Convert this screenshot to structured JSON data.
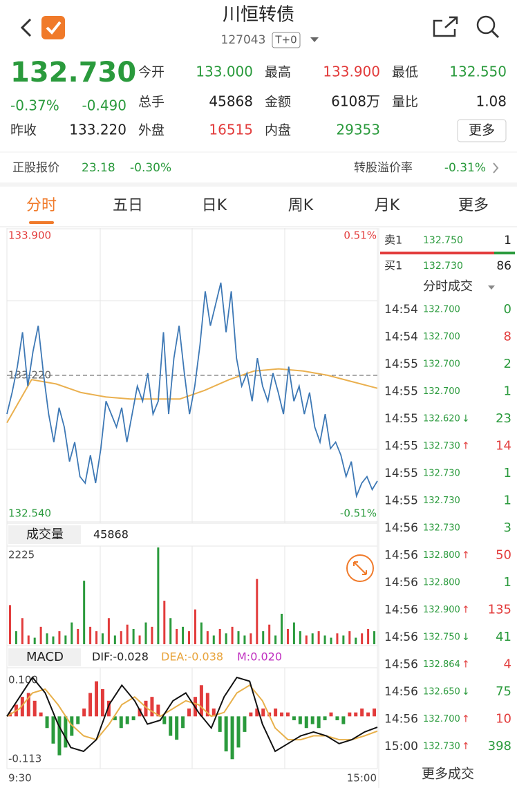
{
  "header": {
    "title": "川恒转债",
    "code": "127043",
    "badge": "T+0"
  },
  "quote": {
    "price": "132.730",
    "change_pct": "-0.37%",
    "change": "-0.490",
    "prev_label": "昨收",
    "prev_value": "133.220",
    "fields": [
      {
        "label": "今开",
        "value": "133.000",
        "color": "#2a9a3c"
      },
      {
        "label": "最高",
        "value": "133.900",
        "color": "#e23b3b"
      },
      {
        "label": "最低",
        "value": "132.550",
        "color": "#2a9a3c"
      },
      {
        "label": "总手",
        "value": "45868",
        "color": "#222222"
      },
      {
        "label": "金额",
        "value": "6108万",
        "color": "#222222"
      },
      {
        "label": "量比",
        "value": "1.08",
        "color": "#222222"
      },
      {
        "label": "外盘",
        "value": "16515",
        "color": "#e23b3b"
      },
      {
        "label": "内盘",
        "value": "29353",
        "color": "#2a9a3c"
      }
    ],
    "more_button": "更多"
  },
  "stock": {
    "label": "正股报价",
    "price": "23.18",
    "change": "-0.30%",
    "premium_label": "转股溢价率",
    "premium": "-0.31%"
  },
  "tabs": {
    "items": [
      "分时",
      "五日",
      "日K",
      "周K",
      "月K",
      "更多"
    ],
    "active": 0
  },
  "price_chart": {
    "ylim": [
      132.54,
      133.9
    ],
    "yticks": [
      {
        "value": 133.9,
        "label": "133.900"
      },
      {
        "value": 133.22,
        "label": "133.220"
      },
      {
        "value": 132.54,
        "label": "132.540"
      }
    ],
    "pct_ticks": [
      {
        "value": 133.9,
        "label": "0.51%"
      },
      {
        "value": 132.54,
        "label": "-0.51%"
      }
    ],
    "price": [
      133.04,
      133.14,
      133.26,
      133.42,
      133.17,
      133.33,
      133.45,
      133.23,
      133.04,
      132.91,
      133.07,
      132.98,
      132.82,
      132.91,
      132.75,
      132.72,
      132.85,
      132.72,
      132.88,
      133.1,
      133.04,
      132.98,
      133.07,
      132.91,
      133.04,
      133.17,
      133.1,
      133.23,
      133.04,
      133.1,
      133.42,
      133.04,
      133.3,
      133.45,
      133.23,
      133.04,
      133.17,
      133.36,
      133.61,
      133.45,
      133.55,
      133.65,
      133.42,
      133.61,
      133.3,
      133.17,
      133.23,
      133.1,
      133.3,
      133.17,
      133.1,
      133.23,
      133.14,
      133.04,
      133.26,
      133.1,
      133.17,
      133.04,
      133.14,
      132.98,
      132.91,
      133.04,
      132.88,
      132.91,
      132.85,
      132.75,
      132.82,
      132.66,
      132.72,
      132.75,
      132.69,
      132.73
    ],
    "price_color": "#3d78b5",
    "average": [
      133.0,
      133.2,
      133.18,
      133.14,
      133.12,
      133.11,
      133.11,
      133.11,
      133.15,
      133.2,
      133.24,
      133.25,
      133.24,
      133.22,
      133.19,
      133.16
    ],
    "average_color": "#eab04f",
    "xticks": [
      "9:30",
      "15:00"
    ]
  },
  "volume_chart": {
    "button": "成交量",
    "total": "45868",
    "ylim": [
      0,
      2225
    ],
    "yticks": [
      2225
    ],
    "values": [
      900,
      300,
      600,
      200,
      150,
      400,
      250,
      180,
      300,
      200,
      500,
      350,
      1460,
      400,
      300,
      250,
      600,
      200,
      300,
      450,
      350,
      200,
      500,
      400,
      2225,
      1000,
      600,
      350,
      400,
      300,
      800,
      500,
      300,
      200,
      350,
      250,
      400,
      300,
      200,
      250,
      1500,
      300,
      450,
      200,
      700,
      350,
      500,
      300,
      200,
      250,
      300,
      200,
      150,
      250,
      200,
      300,
      150,
      250,
      350,
      300
    ],
    "colors": [
      "#e23b3b",
      "#2a9a3c",
      "#e23b3b",
      "#e23b3b",
      "#2a9a3c",
      "#e23b3b",
      "#2a9a3c",
      "#2a9a3c",
      "#e23b3b",
      "#2a9a3c",
      "#2a9a3c",
      "#e23b3b",
      "#2a9a3c",
      "#e23b3b",
      "#e23b3b",
      "#2a9a3c",
      "#e23b3b",
      "#2a9a3c",
      "#e23b3b",
      "#e23b3b",
      "#2a9a3c",
      "#e23b3b",
      "#2a9a3c",
      "#e23b3b",
      "#2a9a3c",
      "#e23b3b",
      "#2a9a3c",
      "#e23b3b",
      "#2a9a3c",
      "#e23b3b",
      "#e23b3b",
      "#2a9a3c",
      "#e23b3b",
      "#2a9a3c",
      "#e23b3b",
      "#2a9a3c",
      "#e23b3b",
      "#2a9a3c",
      "#2a9a3c",
      "#e23b3b",
      "#e23b3b",
      "#2a9a3c",
      "#e23b3b",
      "#2a9a3c",
      "#2a9a3c",
      "#e23b3b",
      "#2a9a3c",
      "#2a9a3c",
      "#e23b3b",
      "#2a9a3c",
      "#e23b3b",
      "#2a9a3c",
      "#2a9a3c",
      "#e23b3b",
      "#2a9a3c",
      "#e23b3b",
      "#2a9a3c",
      "#e23b3b",
      "#e23b3b",
      "#2a9a3c"
    ]
  },
  "macd_chart": {
    "button": "MACD",
    "labels": [
      {
        "text": "DIF:-0.028",
        "color": "#222222"
      },
      {
        "text": "DEA:-0.038",
        "color": "#e8a33a"
      },
      {
        "text": "M:0.020",
        "color": "#c030c0"
      }
    ],
    "ylim": [
      -0.113,
      0.1
    ],
    "yticks": [
      {
        "value": 0.1,
        "label": "0.100"
      },
      -0.113
    ],
    "bars": [
      0.01,
      0.03,
      0.05,
      0.06,
      0.04,
      0.01,
      -0.03,
      -0.07,
      -0.1,
      -0.08,
      -0.05,
      -0.02,
      0.02,
      0.06,
      0.09,
      0.07,
      0.04,
      -0.01,
      -0.03,
      -0.02,
      -0.01,
      0.02,
      0.04,
      0.05,
      0.03,
      -0.02,
      -0.05,
      -0.06,
      -0.03,
      0.02,
      0.05,
      0.08,
      0.06,
      0.02,
      -0.04,
      -0.09,
      -0.11,
      -0.08,
      -0.04,
      0.01,
      0.02,
      0.02,
      0.01,
      0.02,
      0.01,
      0.01,
      -0.01,
      -0.02,
      -0.03,
      -0.02,
      -0.03,
      -0.01,
      0.01,
      -0.01,
      -0.02,
      0.01,
      0.01,
      0.02,
      0.01,
      0.02
    ],
    "up_color": "#e23b3b",
    "down_color": "#2a9a3c",
    "dif": [
      0.0,
      0.05,
      0.1,
      0.06,
      -0.02,
      -0.08,
      -0.09,
      -0.06,
      0.03,
      0.08,
      0.04,
      -0.02,
      -0.01,
      0.04,
      0.06,
      0.01,
      -0.03,
      0.05,
      0.1,
      0.09,
      -0.02,
      -0.09,
      -0.07,
      -0.05,
      -0.04,
      -0.05,
      -0.07,
      -0.06,
      -0.04,
      -0.028
    ],
    "dea": [
      0.0,
      0.02,
      0.06,
      0.07,
      0.03,
      -0.02,
      -0.05,
      -0.06,
      -0.02,
      0.03,
      0.05,
      0.02,
      0.0,
      0.02,
      0.04,
      0.03,
      0.0,
      0.01,
      0.06,
      0.08,
      0.04,
      -0.03,
      -0.06,
      -0.06,
      -0.05,
      -0.05,
      -0.06,
      -0.06,
      -0.05,
      -0.038
    ],
    "dif_color": "#111111",
    "dea_color": "#e8b04a"
  },
  "order_book": {
    "ask": {
      "label": "卖1",
      "price": "132.750",
      "volume": "1"
    },
    "bid": {
      "label": "买1",
      "price": "132.730",
      "volume": "86"
    }
  },
  "trades": {
    "title": "分时成交",
    "more": "更多成交",
    "rows": [
      {
        "time": "14:54",
        "price": "132.700",
        "volume": "0",
        "color": "#2a9a3c"
      },
      {
        "time": "14:54",
        "price": "132.700",
        "volume": "8",
        "color": "#e23b3b"
      },
      {
        "time": "14:55",
        "price": "132.700",
        "volume": "2",
        "color": "#2a9a3c"
      },
      {
        "time": "14:55",
        "price": "132.700",
        "volume": "1",
        "color": "#2a9a3c"
      },
      {
        "time": "14:55",
        "price": "132.620",
        "arrow": "↓",
        "volume": "23",
        "color": "#2a9a3c"
      },
      {
        "time": "14:55",
        "price": "132.730",
        "arrow": "↑",
        "volume": "14",
        "color": "#e23b3b"
      },
      {
        "time": "14:55",
        "price": "132.730",
        "volume": "1",
        "color": "#2a9a3c"
      },
      {
        "time": "14:55",
        "price": "132.730",
        "volume": "1",
        "color": "#2a9a3c"
      },
      {
        "time": "14:56",
        "price": "132.730",
        "volume": "3",
        "color": "#2a9a3c"
      },
      {
        "time": "14:56",
        "price": "132.800",
        "arrow": "↑",
        "volume": "50",
        "color": "#e23b3b"
      },
      {
        "time": "14:56",
        "price": "132.800",
        "volume": "1",
        "color": "#2a9a3c"
      },
      {
        "time": "14:56",
        "price": "132.900",
        "arrow": "↑",
        "volume": "135",
        "color": "#e23b3b"
      },
      {
        "time": "14:56",
        "price": "132.750",
        "arrow": "↓",
        "volume": "41",
        "color": "#2a9a3c"
      },
      {
        "time": "14:56",
        "price": "132.864",
        "arrow": "↑",
        "volume": "4",
        "color": "#e23b3b"
      },
      {
        "time": "14:56",
        "price": "132.650",
        "arrow": "↓",
        "volume": "75",
        "color": "#2a9a3c"
      },
      {
        "time": "14:56",
        "price": "132.700",
        "arrow": "↑",
        "volume": "10",
        "color": "#e23b3b"
      },
      {
        "time": "15:00",
        "price": "132.730",
        "arrow": "↑",
        "volume": "398",
        "color": "#2a9a3c"
      }
    ]
  }
}
